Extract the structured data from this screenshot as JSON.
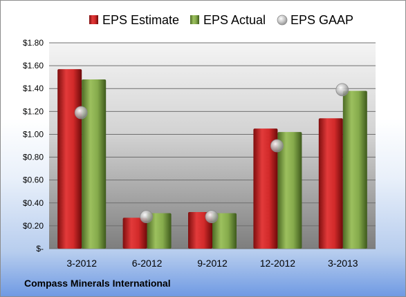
{
  "footer": {
    "company": "Compass Minerals International"
  },
  "colors": {
    "estimate": "#d12a2a",
    "actual": "#8cb050",
    "gaap": "#b8b8b8"
  },
  "chart_data": {
    "type": "bar",
    "categories": [
      "3-2012",
      "6-2012",
      "9-2012",
      "12-2012",
      "3-2013"
    ],
    "series": [
      {
        "name": "EPS Estimate",
        "type": "bar",
        "values": [
          1.57,
          0.27,
          0.32,
          1.05,
          1.14
        ]
      },
      {
        "name": "EPS Actual",
        "type": "bar",
        "values": [
          1.48,
          0.31,
          0.31,
          1.02,
          1.38
        ]
      },
      {
        "name": "EPS GAAP",
        "type": "scatter",
        "values": [
          1.19,
          0.28,
          0.28,
          0.9,
          1.39
        ]
      }
    ],
    "ylim": [
      0,
      1.8
    ],
    "yticks": [
      0,
      0.2,
      0.4,
      0.6,
      0.8,
      1.0,
      1.2,
      1.4,
      1.6,
      1.8
    ],
    "ytick_labels": [
      "$-",
      "$0.20",
      "$0.40",
      "$0.60",
      "$0.80",
      "$1.00",
      "$1.20",
      "$1.40",
      "$1.60",
      "$1.80"
    ],
    "grid": true,
    "legend": "top-center"
  }
}
